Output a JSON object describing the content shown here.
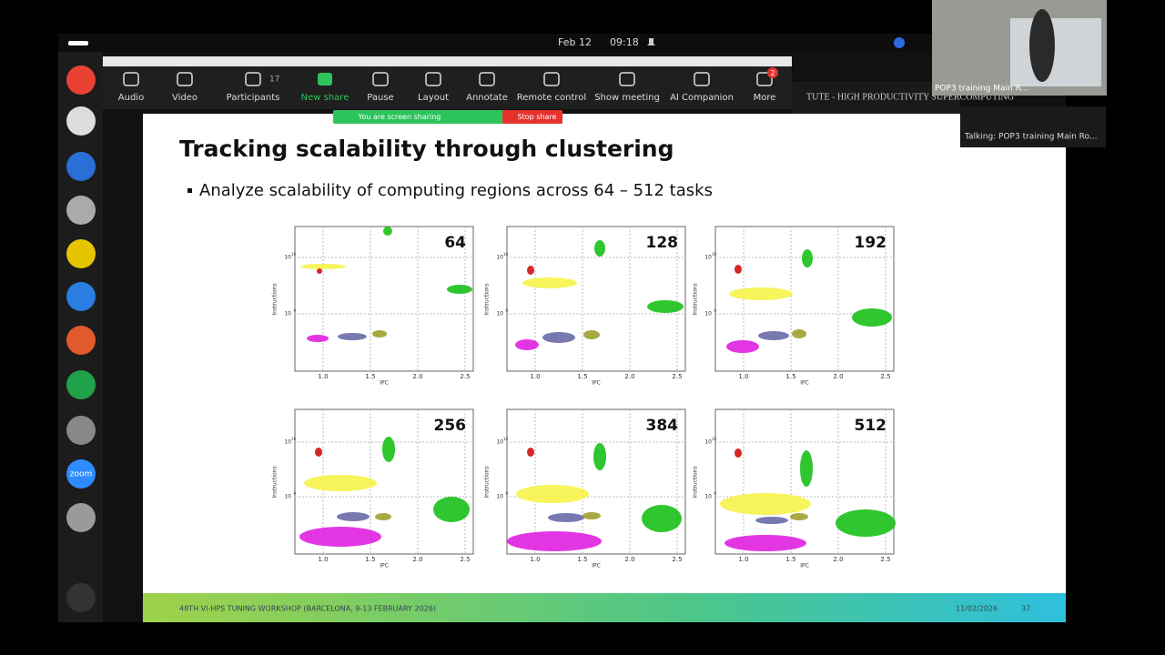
{
  "topbar": {
    "date": "Feb 12",
    "time": "09:18"
  },
  "dock": {
    "zoom_label": "zoom"
  },
  "toolbar": {
    "items": [
      "Audio",
      "Video",
      "Participants",
      "New share",
      "Pause",
      "Layout",
      "Annotate",
      "Remote control",
      "Show meeting",
      "AI Companion",
      "More"
    ],
    "participants_count": 17,
    "more_badge": 2
  },
  "sharing_banner": {
    "status": "You are screen sharing",
    "stop": "Stop share"
  },
  "video": {
    "name": "POP3 training Main R...",
    "talking": "Talking: POP3 training Main Ro..."
  },
  "slide": {
    "header_band": "TUTE - HIGH PRODUCTIVITY SUPERCOMPUTING",
    "title": "Tracking scalability through clustering",
    "bullet": "Analyze scalability of computing regions across 64 – 512 tasks",
    "x_label": "IPC",
    "y_label": "Instructions",
    "xticks": [
      {
        "value": 1,
        "label": "1.0"
      },
      {
        "value": 1.5,
        "label": "1.5"
      },
      {
        "value": 2,
        "label": "2.0"
      },
      {
        "value": 2.5,
        "label": "2.5"
      }
    ],
    "yticks": [
      {
        "base": "10",
        "exponent": "10"
      },
      {
        "base": "10",
        "exponent": "9"
      }
    ],
    "plots": [
      64,
      128,
      192,
      256,
      384,
      512
    ],
    "footer_left": "48TH VI-HPS TUNING WORKSHOP (BARCELONA, 9-13 FEBRUARY 2026)",
    "footer_date": "11/02/2026",
    "page_number": 37
  }
}
